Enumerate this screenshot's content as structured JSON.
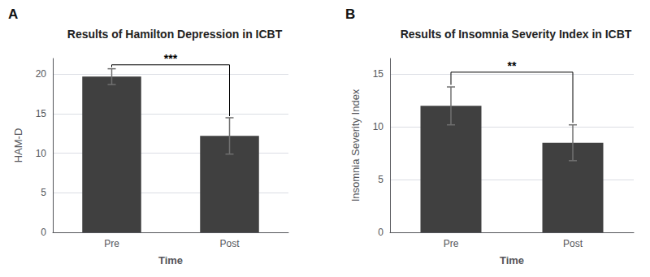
{
  "chart_data": [
    {
      "type": "bar",
      "panel_label": "A",
      "title": "Results of Hamilton Depression in ICBT",
      "xlabel": "Time",
      "ylabel": "HAM-D",
      "categories": [
        "Pre",
        "Post"
      ],
      "values": [
        19.7,
        12.2
      ],
      "errors": [
        1.0,
        2.3
      ],
      "color": "#404040",
      "ylim": [
        0,
        22
      ],
      "yticks": [
        0,
        5,
        10,
        15,
        20
      ],
      "grid": true,
      "significance": {
        "label": "***",
        "bracket_top": 21.2
      }
    },
    {
      "type": "bar",
      "panel_label": "B",
      "title": "Results of Insomnia Severity Index in ICBT",
      "xlabel": "Time",
      "ylabel": "Insomnia Severity Index",
      "categories": [
        "Pre",
        "Post"
      ],
      "values": [
        12.0,
        8.5
      ],
      "errors": [
        1.8,
        1.7
      ],
      "color": "#404040",
      "ylim": [
        0,
        16.5
      ],
      "yticks": [
        0,
        5,
        10,
        15
      ],
      "grid": true,
      "significance": {
        "label": "**",
        "bracket_top": 15.2
      }
    }
  ]
}
